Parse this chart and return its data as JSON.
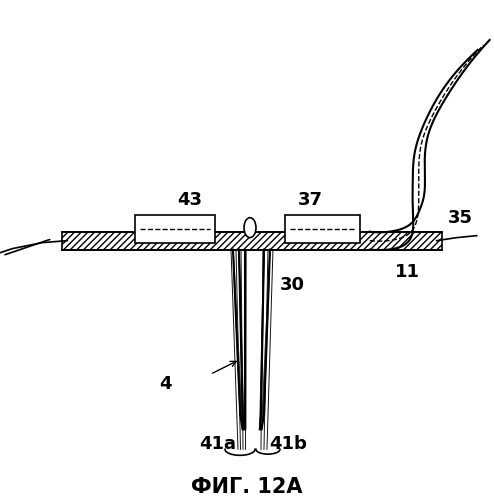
{
  "title": "ФИГ. 12А",
  "background_color": "#ffffff",
  "line_color": "#000000",
  "hatch_color": "#000000",
  "label_43": "43",
  "label_37": "37",
  "label_35": "35",
  "label_11": "11",
  "label_30": "30",
  "label_4": "4",
  "label_41a": "41a",
  "label_41b": "41b"
}
